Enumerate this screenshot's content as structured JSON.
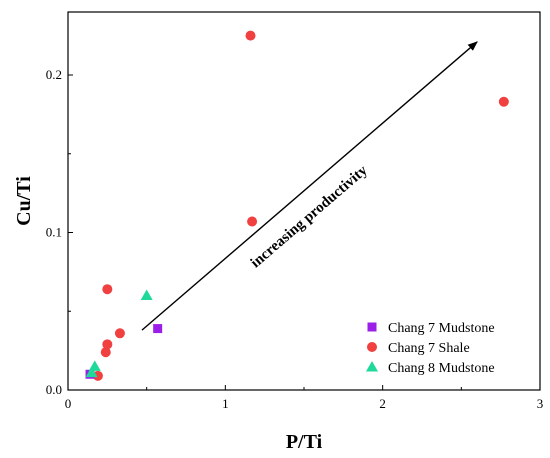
{
  "chart_data": {
    "type": "scatter",
    "title": "",
    "xlabel": "P/Ti",
    "ylabel": "Cu/Ti",
    "xlim": [
      0,
      3
    ],
    "ylim": [
      0,
      0.24
    ],
    "x_ticks": [
      0,
      1,
      2,
      3
    ],
    "x_tick_labels": [
      "0",
      "1",
      "2",
      "3"
    ],
    "y_ticks": [
      0.0,
      0.1,
      0.2
    ],
    "y_tick_labels": [
      "0.0",
      "0.1",
      "0.2"
    ],
    "grid": false,
    "legend_position": "bottom-right",
    "series": [
      {
        "name": "Chang 7 Mudstone",
        "marker": "square",
        "color": "#9B1FE8",
        "points": [
          {
            "x": 0.14,
            "y": 0.01
          },
          {
            "x": 0.57,
            "y": 0.039
          }
        ]
      },
      {
        "name": "Chang 7 Shale",
        "marker": "circle",
        "color": "#F0403F",
        "points": [
          {
            "x": 0.19,
            "y": 0.009
          },
          {
            "x": 0.24,
            "y": 0.024
          },
          {
            "x": 0.25,
            "y": 0.029
          },
          {
            "x": 0.25,
            "y": 0.064
          },
          {
            "x": 0.33,
            "y": 0.036
          },
          {
            "x": 1.16,
            "y": 0.225
          },
          {
            "x": 1.17,
            "y": 0.107
          },
          {
            "x": 2.77,
            "y": 0.183
          }
        ]
      },
      {
        "name": "Chang 8 Mudstone",
        "marker": "triangle",
        "color": "#1ED99A",
        "points": [
          {
            "x": 0.15,
            "y": 0.011
          },
          {
            "x": 0.17,
            "y": 0.015
          },
          {
            "x": 0.5,
            "y": 0.06
          }
        ]
      }
    ],
    "annotations": [
      {
        "text": "increasing productivity",
        "arrow_from": {
          "x": 0.47,
          "y": 0.038
        },
        "arrow_to": {
          "x": 2.6,
          "y": 0.221
        },
        "label_at": {
          "x": 1.55,
          "y": 0.108
        }
      }
    ]
  }
}
